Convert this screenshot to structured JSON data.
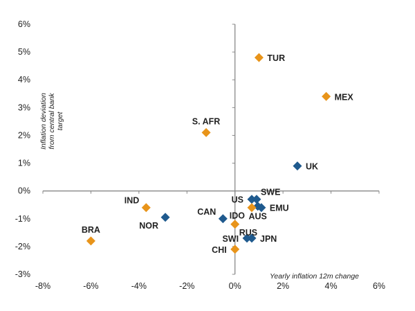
{
  "chart_data": {
    "type": "scatter",
    "title": "",
    "xlabel": "Yearly inflation 12m change",
    "ylabel": [
      "Inflation deviation",
      "from central bank",
      "target"
    ],
    "xlim": [
      -0.08,
      0.06
    ],
    "ylim": [
      -0.03,
      0.06
    ],
    "xticks": [
      -0.08,
      -0.06,
      -0.04,
      -0.02,
      0,
      0.02,
      0.04,
      0.06
    ],
    "xtick_labels": [
      "-8%",
      "-6%",
      "-4%",
      "-2%",
      "0%",
      "2%",
      "4%",
      "6%"
    ],
    "yticks": [
      0.06,
      0.05,
      0.04,
      0.03,
      0.02,
      0.01,
      0,
      -0.01,
      -0.02,
      -0.03
    ],
    "ytick_labels": [
      "6%",
      "5%",
      "4%",
      "3%",
      "2%",
      "1%",
      "0%",
      "-1%",
      "-2%",
      "-3%"
    ],
    "grid": false,
    "colors": {
      "orange": "#E8941A",
      "blue": "#1F5A8E"
    },
    "points": [
      {
        "label": "TUR",
        "x": 0.01,
        "y": 0.048,
        "color": "orange",
        "label_pos": "right"
      },
      {
        "label": "MEX",
        "x": 0.038,
        "y": 0.034,
        "color": "orange",
        "label_pos": "right"
      },
      {
        "label": "S. AFR",
        "x": -0.012,
        "y": 0.021,
        "color": "orange",
        "label_pos": "top"
      },
      {
        "label": "UK",
        "x": 0.026,
        "y": 0.009,
        "color": "blue",
        "label_pos": "right"
      },
      {
        "label": "IND",
        "x": -0.037,
        "y": -0.006,
        "color": "orange",
        "label_pos": "left-top"
      },
      {
        "label": "NOR",
        "x": -0.029,
        "y": -0.0095,
        "color": "blue",
        "label_pos": "left-bottom"
      },
      {
        "label": "BRA",
        "x": -0.06,
        "y": -0.018,
        "color": "orange",
        "label_pos": "top"
      },
      {
        "label": "CAN",
        "x": -0.005,
        "y": -0.01,
        "color": "blue",
        "label_pos": "left-top"
      },
      {
        "label": "US",
        "x": 0.007,
        "y": -0.003,
        "color": "blue",
        "label_pos": "left"
      },
      {
        "label": "SWE",
        "x": 0.009,
        "y": -0.003,
        "color": "blue",
        "label_pos": "right-top"
      },
      {
        "label": "EMU",
        "x": 0.011,
        "y": -0.006,
        "color": "blue",
        "label_pos": "right"
      },
      {
        "label": "AUS",
        "x": 0.0095,
        "y": -0.0055,
        "color": "blue",
        "label_pos": "bottom"
      },
      {
        "label": "IDO",
        "x": 0.007,
        "y": -0.006,
        "color": "orange",
        "label_pos": "left-bottom"
      },
      {
        "label": "RUS",
        "x": 0.0,
        "y": -0.012,
        "color": "orange",
        "label_pos": "right-bottom"
      },
      {
        "label": "SWI",
        "x": 0.005,
        "y": -0.017,
        "color": "blue",
        "label_pos": "left"
      },
      {
        "label": "JPN",
        "x": 0.007,
        "y": -0.017,
        "color": "blue",
        "label_pos": "right"
      },
      {
        "label": "CHI",
        "x": 0.0,
        "y": -0.021,
        "color": "orange",
        "label_pos": "left"
      }
    ]
  }
}
